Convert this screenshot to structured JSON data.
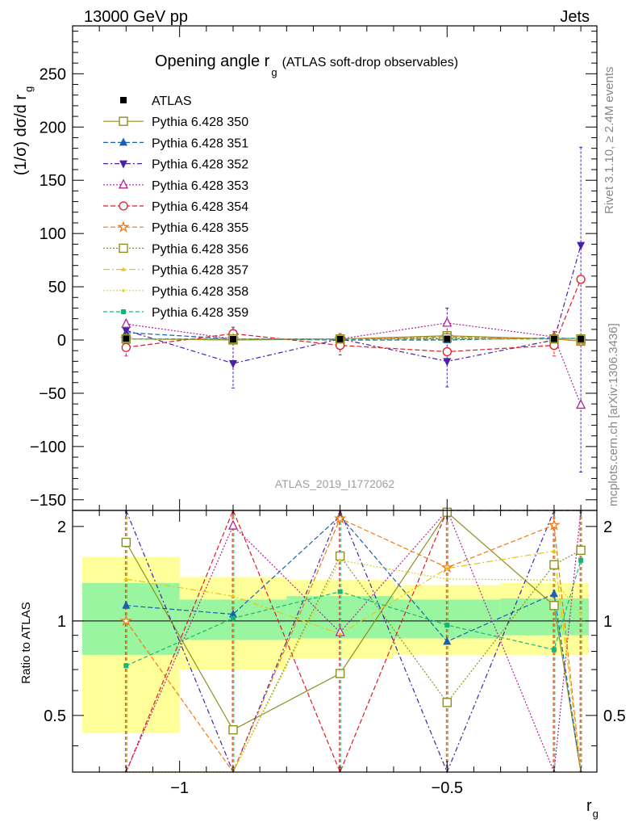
{
  "header": {
    "left": "13000 GeV pp",
    "right": "Jets",
    "side_top": "Rivet 3.1.10, ≥ 2.4M events",
    "side_bottom": "mcplots.cern.ch [arXiv:1306.3436]",
    "watermark": "ATLAS_2019_I1772062"
  },
  "chart_data": {
    "type": "line",
    "title_main": "Opening angle r",
    "title_sub": "g",
    "title_rest": "(ATLAS soft-drop observables)",
    "ylabel_main": "(1/σ) dσ/d r",
    "ylabel_sub": "g",
    "ratio_ylabel": "Ratio to ATLAS",
    "xlabel_main": "r",
    "xlabel_sub": "g",
    "xlim": [
      -1.2,
      -0.22
    ],
    "ylim": [
      -160,
      295
    ],
    "ratio_ylim": [
      0.33,
      2.25
    ],
    "x_ticks": [
      {
        "v": -1,
        "label": "−1"
      },
      {
        "v": -0.5,
        "label": "−0.5"
      }
    ],
    "y_ticks": [
      {
        "v": -150,
        "label": "−150"
      },
      {
        "v": -100,
        "label": "−100"
      },
      {
        "v": -50,
        "label": "−50"
      },
      {
        "v": 0,
        "label": "0"
      },
      {
        "v": 50,
        "label": "50"
      },
      {
        "v": 100,
        "label": "100"
      },
      {
        "v": 150,
        "label": "150"
      },
      {
        "v": 200,
        "label": "200"
      },
      {
        "v": 250,
        "label": "250"
      }
    ],
    "ratio_ticks": [
      {
        "v": 0.5,
        "label": "0.5"
      },
      {
        "v": 1,
        "label": "1"
      },
      {
        "v": 2,
        "label": "2"
      }
    ],
    "bins": [
      -1.2,
      -1.0,
      -0.8,
      -0.6,
      -0.4,
      -0.2
    ],
    "x": [
      -1.1,
      -0.9,
      -0.7,
      -0.5,
      -0.3,
      -0.25
    ],
    "data": {
      "name": "ATLAS",
      "y": [
        1.2,
        0.8,
        0.9,
        1.1,
        1.0,
        0.9
      ],
      "band_inner": [
        [
          0.78,
          1.32
        ],
        [
          0.87,
          1.17
        ],
        [
          0.88,
          1.2
        ],
        [
          0.88,
          1.17
        ],
        [
          0.9,
          1.18
        ],
        [
          0.88,
          1.2
        ]
      ],
      "band_outer": [
        [
          0.44,
          1.6
        ],
        [
          0.7,
          1.38
        ],
        [
          0.76,
          1.35
        ],
        [
          0.78,
          1.3
        ],
        [
          0.78,
          1.32
        ],
        [
          0.73,
          1.37
        ]
      ]
    },
    "series": [
      {
        "name": "Pythia 6.428 350",
        "color": "#8f8f20",
        "marker": "square-open",
        "dash": "",
        "y": [
          1,
          0,
          1,
          4,
          1,
          -1
        ],
        "ratio": [
          1.78,
          0.45,
          0.68,
          2.22,
          1.12,
          0.1
        ]
      },
      {
        "name": "Pythia 6.428 351",
        "color": "#1a5fb4",
        "marker": "triangle-up",
        "dash": "6,3",
        "y": [
          7,
          1,
          0,
          0,
          2,
          1
        ],
        "ratio": [
          1.12,
          1.05,
          2.16,
          0.86,
          1.22,
          0.1
        ]
      },
      {
        "name": "Pythia 6.428 352",
        "color": "#4b1fa8",
        "marker": "triangle-down",
        "dash": "6,3,2,3",
        "y": [
          9,
          -22,
          1,
          -20,
          0,
          89
        ],
        "ratio": [
          3.0,
          0.1,
          3.0,
          0.1,
          3.0,
          3.0
        ]
      },
      {
        "name": "Pythia 6.428 353",
        "color": "#b1239a",
        "marker": "triangle-open",
        "dash": "2,2",
        "y": [
          15,
          1,
          1,
          16,
          3,
          -61
        ],
        "ratio": [
          0.1,
          2.01,
          0.92,
          3.0,
          0.1,
          3.0
        ]
      },
      {
        "name": "Pythia 6.428 354",
        "color": "#e01b24",
        "marker": "circle-open",
        "dash": "6,3",
        "y": [
          -7,
          6,
          -5,
          -11,
          -5,
          57
        ],
        "ratio": [
          0.1,
          3.0,
          0.1,
          3.0,
          3.0,
          3.0
        ]
      },
      {
        "name": "Pythia 6.428 355",
        "color": "#f07a10",
        "marker": "star",
        "dash": "6,3",
        "y": [
          1,
          1,
          1,
          3,
          1,
          -1
        ],
        "ratio": [
          1.0,
          0.1,
          2.12,
          1.48,
          2.02,
          0.1
        ]
      },
      {
        "name": "Pythia 6.428 356",
        "color": "#8f8f20",
        "marker": "square-open",
        "dash": "2,2",
        "y": [
          1,
          1,
          1,
          2,
          1,
          1
        ],
        "ratio": [
          0.1,
          0.1,
          1.61,
          0.55,
          1.51,
          1.68
        ]
      },
      {
        "name": "Pythia 6.428 357",
        "color": "#e8c515",
        "marker": "tri-small",
        "dash": "8,3,2,3",
        "y": [
          1,
          1,
          1,
          1,
          1,
          1
        ],
        "ratio": [
          1.36,
          1.2,
          0.91,
          1.47,
          1.67,
          0.1
        ]
      },
      {
        "name": "Pythia 6.428 358",
        "color": "#d6d62a",
        "marker": "dot",
        "dash": "2,2",
        "y": [
          1,
          1,
          1,
          1,
          1,
          1
        ],
        "ratio": [
          0.1,
          0.1,
          1.56,
          1.36,
          1.35,
          1.05
        ]
      },
      {
        "name": "Pythia 6.428 359",
        "color": "#1ab37a",
        "marker": "square-filled",
        "dash": "5,3",
        "y": [
          1,
          1,
          1,
          1,
          1,
          2
        ],
        "ratio": [
          0.72,
          1.02,
          1.24,
          0.97,
          0.81,
          1.56
        ]
      }
    ],
    "errors_main": [
      {
        "xi": 0,
        "lo": -15,
        "hi": 18,
        "color": "#b1239a"
      },
      {
        "xi": 1,
        "lo": -45,
        "hi": 12,
        "color": "#4b1fa8"
      },
      {
        "xi": 2,
        "lo": -14,
        "hi": 6,
        "color": "#e01b24"
      },
      {
        "xi": 3,
        "lo": -44,
        "hi": 30,
        "color": "#4b1fa8"
      },
      {
        "xi": 4,
        "lo": -15,
        "hi": 8,
        "color": "#e01b24"
      },
      {
        "xi": 5,
        "lo": -124,
        "hi": 181,
        "color": "#4b1fa8"
      }
    ]
  }
}
